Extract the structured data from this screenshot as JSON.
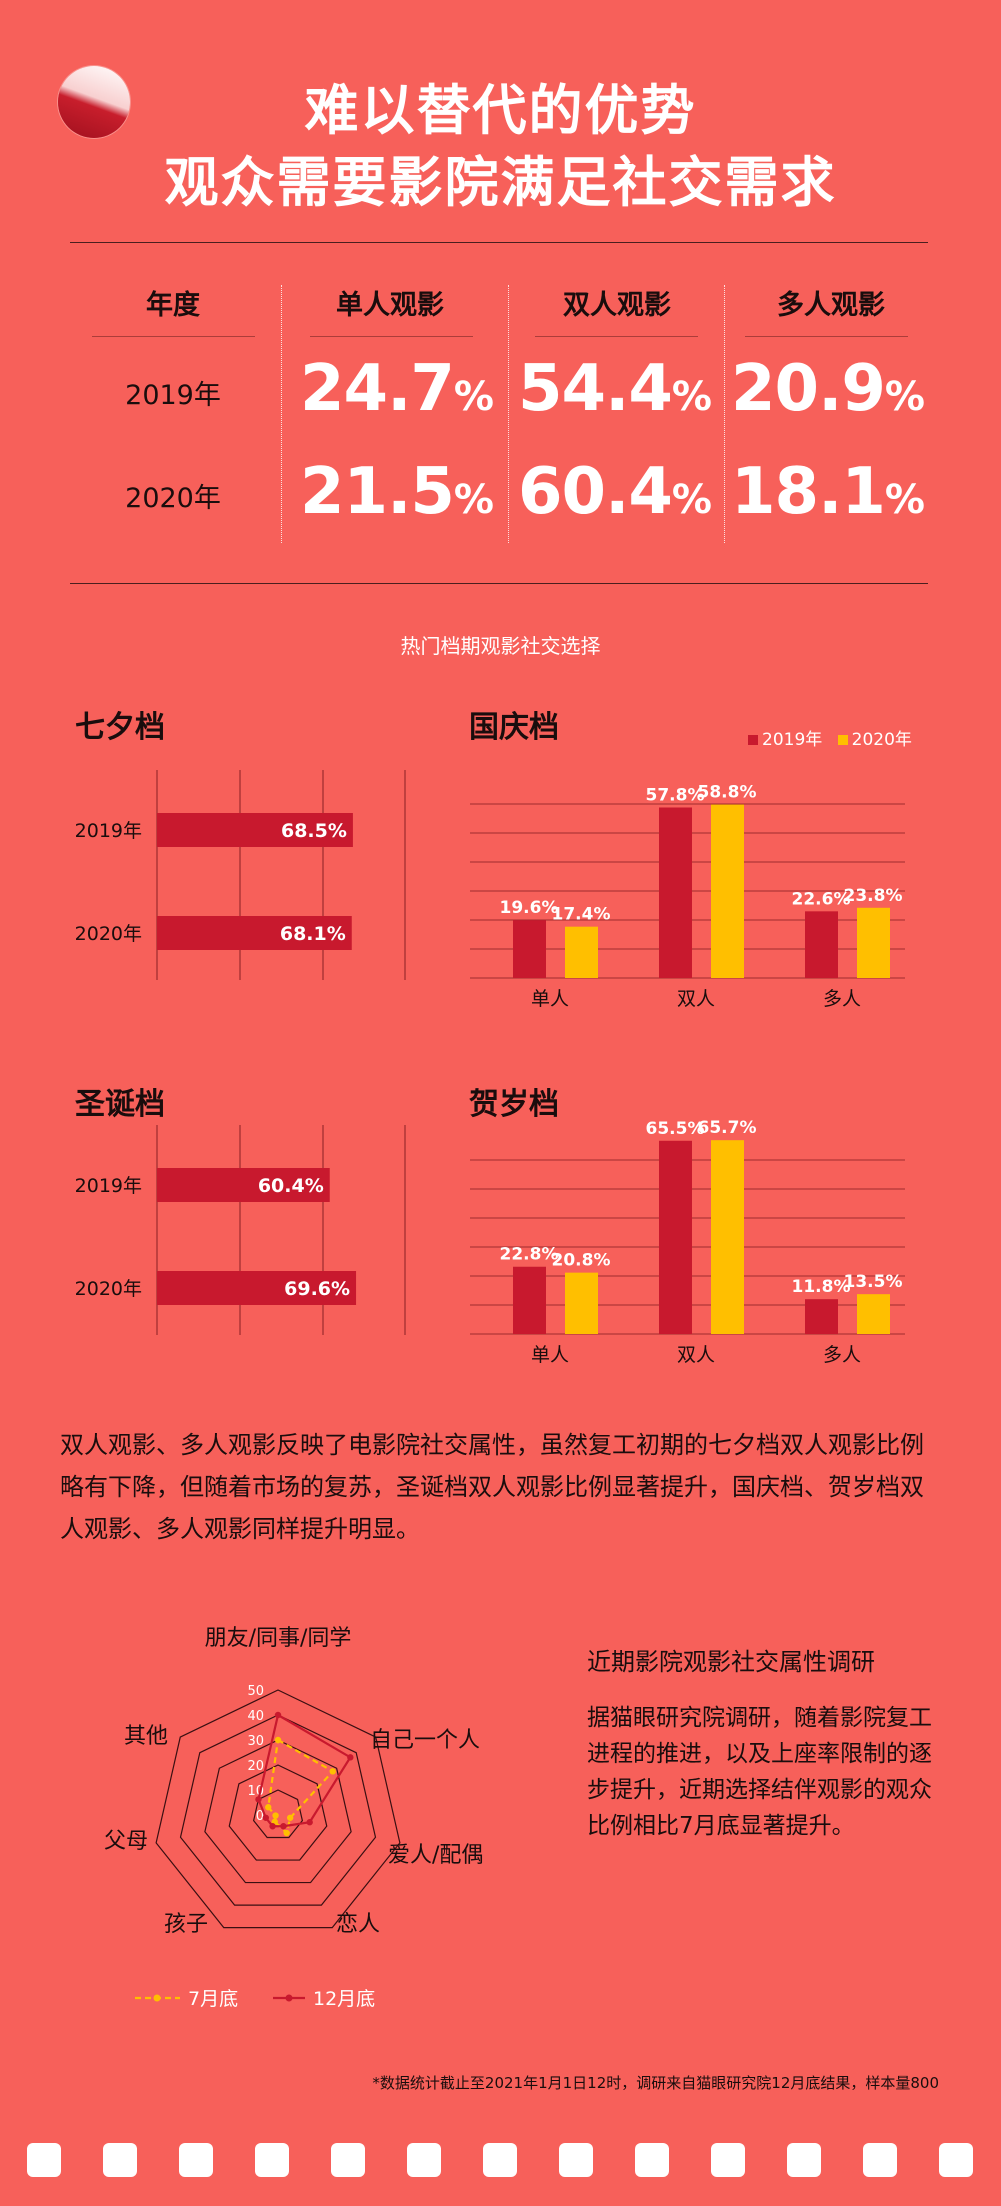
{
  "header": {
    "title_line1": "难以替代的优势",
    "title_line2": "观众需要影院满足社交需求"
  },
  "table": {
    "headers": [
      "年度",
      "单人观影",
      "双人观影",
      "多人观影"
    ],
    "rows": [
      {
        "year": "2019年",
        "values": [
          "24.7",
          "54.4",
          "20.9"
        ]
      },
      {
        "year": "2020年",
        "values": [
          "21.5",
          "60.4",
          "18.1"
        ]
      }
    ],
    "unit": "%"
  },
  "subtitle": "热门档期观影社交选择",
  "legend": {
    "a": "2019年",
    "b": "2020年"
  },
  "colors": {
    "bg": "#f7605a",
    "y2019": "#c8192e",
    "y2020": "#ffbf00",
    "grid": "#8a1f24"
  },
  "chart_data": [
    {
      "type": "bar",
      "orientation": "horizontal",
      "title": "七夕档",
      "categories": [
        "2019年",
        "2020年"
      ],
      "values": [
        68.5,
        68.1
      ],
      "labels": [
        "68.5%",
        "68.1%"
      ]
    },
    {
      "type": "bar",
      "title": "国庆档",
      "categories": [
        "单人",
        "双人",
        "多人"
      ],
      "series": [
        {
          "name": "2019年",
          "values": [
            19.6,
            57.8,
            22.6
          ],
          "labels": [
            "19.6%",
            "57.8%",
            "22.6%"
          ]
        },
        {
          "name": "2020年",
          "values": [
            17.4,
            58.8,
            23.8
          ],
          "labels": [
            "17.4%",
            "58.8%",
            "23.8%"
          ]
        }
      ],
      "legend": "top-right"
    },
    {
      "type": "bar",
      "orientation": "horizontal",
      "title": "圣诞档",
      "categories": [
        "2019年",
        "2020年"
      ],
      "values": [
        60.4,
        69.6
      ],
      "labels": [
        "60.4%",
        "69.6%"
      ]
    },
    {
      "type": "bar",
      "title": "贺岁档",
      "categories": [
        "单人",
        "双人",
        "多人"
      ],
      "series": [
        {
          "name": "2019年",
          "values": [
            22.8,
            65.5,
            11.8
          ],
          "labels": [
            "22.8%",
            "65.5%",
            "11.8%"
          ]
        },
        {
          "name": "2020年",
          "values": [
            20.8,
            65.7,
            13.5
          ],
          "labels": [
            "20.8%",
            "65.7%",
            "13.5%"
          ]
        }
      ]
    },
    {
      "type": "radar",
      "axes": [
        "朋友/同事/同学",
        "自己一个人",
        "爱人/配偶",
        "恋人",
        "孩子",
        "父母",
        "其他"
      ],
      "ticks": [
        "50",
        "40",
        "30",
        "20",
        "10",
        "0"
      ],
      "rmax": 50,
      "series": [
        {
          "name": "7月底",
          "values": [
            30,
            28,
            5,
            8,
            3,
            1,
            5
          ]
        },
        {
          "name": "12月底",
          "values": [
            40,
            37,
            13,
            5,
            5,
            5,
            10
          ]
        }
      ]
    }
  ],
  "paragraph": "双人观影、多人观影反映了电影院社交属性，虽然复工初期的七夕档双人观影比例略有下降，但随着市场的复苏，圣诞档双人观影比例显著提升，国庆档、贺岁档双人观影、多人观影同样提升明显。",
  "survey": {
    "title": "近期影院观影社交属性调研",
    "body": "据猫眼研究院调研，随着影院复工进程的推进，以及上座率限制的逐步提升，近期选择结伴观影的观众比例相比7月底显著提升。"
  },
  "footnote": "*数据统计截止至2021年1月1日12时，调研来自猫眼研究院12月底结果，样本量800"
}
